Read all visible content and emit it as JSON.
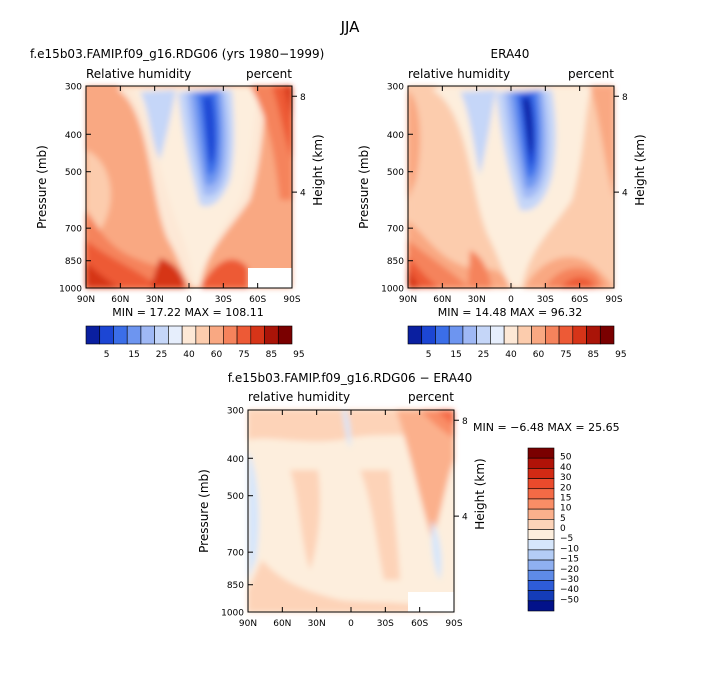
{
  "figure": {
    "title": "JJA"
  },
  "chart_data": [
    {
      "type": "heatmap",
      "id": "model",
      "title": "f.e15b03.FAMIP.f09_g16.RDG06 (yrs 1980−1999)",
      "left_label": "Relative humidity",
      "right_label": "percent",
      "ylabel": "Pressure (mb)",
      "ylabel_right": "Height (km)",
      "x_ticks": [
        "90N",
        "60N",
        "30N",
        "0",
        "30S",
        "60S",
        "90S"
      ],
      "y_ticks": [
        300,
        400,
        500,
        700,
        850,
        1000
      ],
      "y_log": true,
      "height_ticks": [
        8,
        4
      ],
      "stats": {
        "min": "17.22",
        "max": "108.11"
      },
      "stats_text": "MIN =   17.22   MAX =  108.11",
      "levels": [
        5,
        15,
        25,
        40,
        60,
        75,
        85,
        95
      ],
      "colorbar_labels": [
        "5",
        "15",
        "25",
        "40",
        "60",
        "75",
        "85",
        "95"
      ],
      "colors": [
        "#0a1fa0",
        "#1c46d4",
        "#3b6ee8",
        "#6d95f0",
        "#9fb8f5",
        "#c5d6f8",
        "#e6eefc",
        "#fde8d6",
        "#fcccad",
        "#f9a882",
        "#f5835c",
        "#ed5a36",
        "#d63418",
        "#aa1408",
        "#7a0000"
      ],
      "masked_region": {
        "lat_from": -50,
        "lat_to": -90,
        "p_from": 930,
        "p_to": 1000
      }
    },
    {
      "type": "heatmap",
      "id": "era40",
      "title": "ERA40",
      "left_label": "relative humidity",
      "right_label": "percent",
      "ylabel": "Pressure (mb)",
      "ylabel_right": "Height (km)",
      "x_ticks": [
        "90N",
        "60N",
        "30N",
        "0",
        "30S",
        "60S",
        "90S"
      ],
      "y_ticks": [
        300,
        400,
        500,
        700,
        850,
        1000
      ],
      "y_log": true,
      "height_ticks": [
        8,
        4
      ],
      "stats": {
        "min": "14.48",
        "max": "96.32"
      },
      "stats_text": "MIN =   14.48   MAX =   96.32",
      "levels": [
        5,
        15,
        25,
        40,
        60,
        75,
        85,
        95
      ],
      "colorbar_labels": [
        "5",
        "15",
        "25",
        "40",
        "60",
        "75",
        "85",
        "95"
      ],
      "colors": [
        "#0a1fa0",
        "#1c46d4",
        "#3b6ee8",
        "#6d95f0",
        "#9fb8f5",
        "#c5d6f8",
        "#e6eefc",
        "#fde8d6",
        "#fcccad",
        "#f9a882",
        "#f5835c",
        "#ed5a36",
        "#d63418",
        "#aa1408",
        "#7a0000"
      ]
    },
    {
      "type": "heatmap",
      "id": "diff",
      "title": "f.e15b03.FAMIP.f09_g16.RDG06 − ERA40",
      "left_label": "relative humidity",
      "right_label": "percent",
      "ylabel": "Pressure (mb)",
      "ylabel_right": "Height (km)",
      "x_ticks": [
        "90N",
        "60N",
        "30N",
        "0",
        "30S",
        "60S",
        "90S"
      ],
      "y_ticks": [
        300,
        400,
        500,
        700,
        850,
        1000
      ],
      "y_log": true,
      "height_ticks": [
        8,
        4
      ],
      "stats": {
        "min": "−6.48",
        "max": "25.65"
      },
      "stats_text": "MIN =   −6.48   MAX =   25.65",
      "levels": [
        50,
        40,
        30,
        20,
        15,
        10,
        5,
        0,
        -5,
        -10,
        -15,
        -20,
        -30,
        -40,
        -50
      ],
      "colorbar_labels": [
        "50",
        "40",
        "30",
        "20",
        "15",
        "10",
        "5",
        "0",
        "−5",
        "−10",
        "−15",
        "−20",
        "−30",
        "−40",
        "−50"
      ],
      "colors": [
        "#7a0000",
        "#b01208",
        "#d22a14",
        "#ea4a2c",
        "#f46a46",
        "#f98d66",
        "#fbb08c",
        "#fdd3b8",
        "#fdeedd",
        "#d6e6fb",
        "#b4cdf6",
        "#8fb0f1",
        "#5e8be8",
        "#2e5cd8",
        "#143cb8",
        "#02128a"
      ],
      "masked_region": {
        "lat_from": -50,
        "lat_to": -90,
        "p_from": 930,
        "p_to": 1000
      }
    }
  ]
}
